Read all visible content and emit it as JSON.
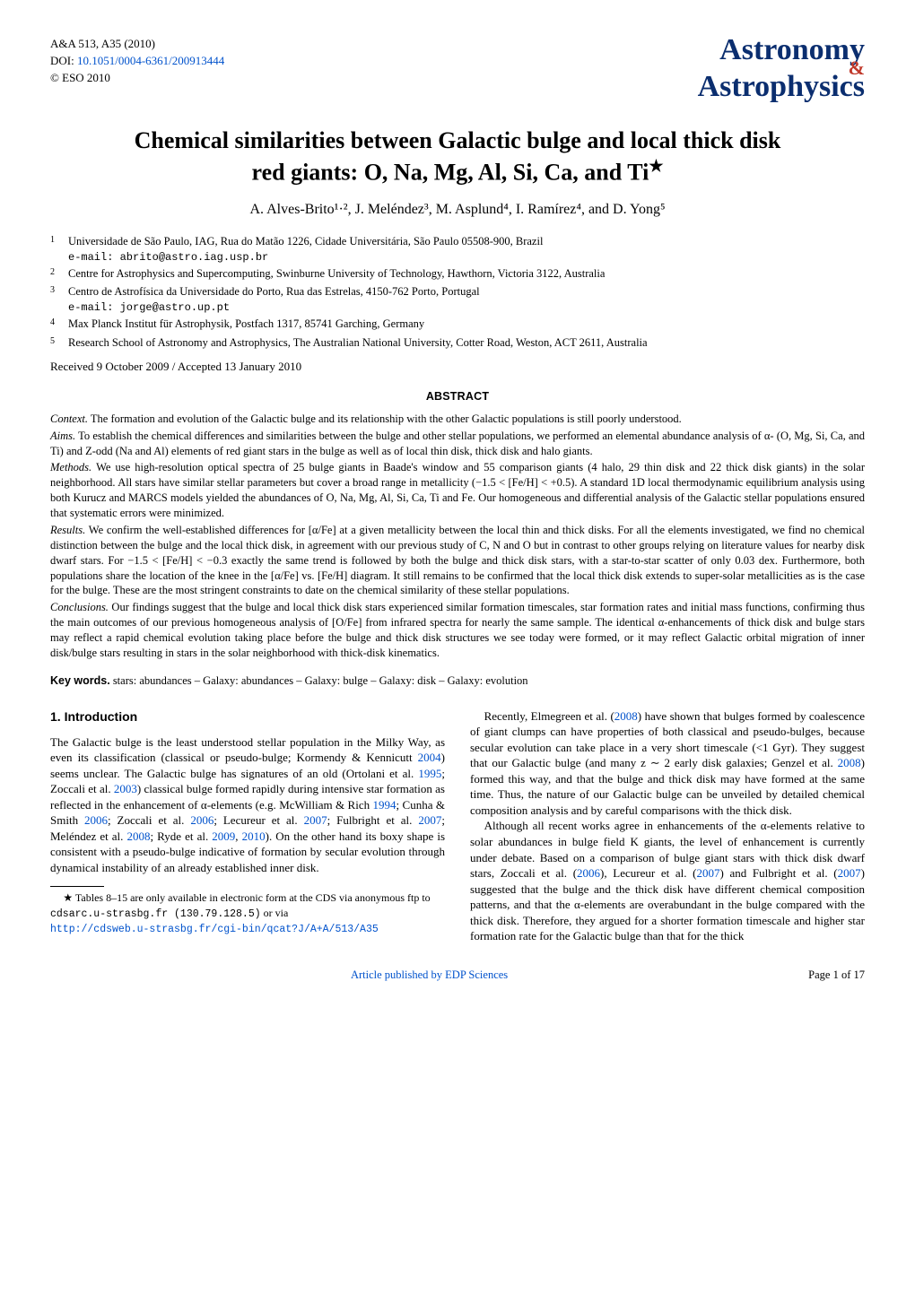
{
  "header": {
    "journal": "A&A 513, A35 (2010)",
    "doi_prefix": "DOI: ",
    "doi_link_text": "10.1051/0004-6361/200913444",
    "copyright": "© ESO 2010",
    "logo": {
      "line1": "Astronomy",
      "amp": "&",
      "line2": "Astrophysics"
    }
  },
  "title": {
    "line1": "Chemical similarities between Galactic bulge and local thick disk",
    "line2": "red giants: O, Na, Mg, Al, Si, Ca, and Ti",
    "star": "★"
  },
  "authors": "A. Alves-Brito¹·², J. Meléndez³, M. Asplund⁴, I. Ramírez⁴, and D. Yong⁵",
  "affiliations": [
    {
      "num": "1",
      "text": "Universidade de São Paulo, IAG, Rua do Matão 1226, Cidade Universitária, São Paulo 05508-900, Brazil",
      "email": "e-mail: abrito@astro.iag.usp.br"
    },
    {
      "num": "2",
      "text": "Centre for Astrophysics and Supercomputing, Swinburne University of Technology, Hawthorn, Victoria 3122, Australia",
      "email": ""
    },
    {
      "num": "3",
      "text": "Centro de Astrofísica da Universidade do Porto, Rua das Estrelas, 4150-762 Porto, Portugal",
      "email": "e-mail: jorge@astro.up.pt"
    },
    {
      "num": "4",
      "text": "Max Planck Institut für Astrophysik, Postfach 1317, 85741 Garching, Germany",
      "email": ""
    },
    {
      "num": "5",
      "text": "Research School of Astronomy and Astrophysics, The Australian National University, Cotter Road, Weston, ACT 2611, Australia",
      "email": ""
    }
  ],
  "dates": "Received 9 October 2009 / Accepted 13 January 2010",
  "abstract_heading": "ABSTRACT",
  "abstract": {
    "context_label": "Context.",
    "context": "The formation and evolution of the Galactic bulge and its relationship with the other Galactic populations is still poorly understood.",
    "aims_label": "Aims.",
    "aims": "To establish the chemical differences and similarities between the bulge and other stellar populations, we performed an elemental abundance analysis of α- (O, Mg, Si, Ca, and Ti) and Z-odd (Na and Al) elements of red giant stars in the bulge as well as of local thin disk, thick disk and halo giants.",
    "methods_label": "Methods.",
    "methods": "We use high-resolution optical spectra of 25 bulge giants in Baade's window and 55 comparison giants (4 halo, 29 thin disk and 22 thick disk giants) in the solar neighborhood. All stars have similar stellar parameters but cover a broad range in metallicity (−1.5 < [Fe/H] < +0.5). A standard 1D local thermodynamic equilibrium analysis using both Kurucz and MARCS models yielded the abundances of O, Na, Mg, Al, Si, Ca, Ti and Fe. Our homogeneous and differential analysis of the Galactic stellar populations ensured that systematic errors were minimized.",
    "results_label": "Results.",
    "results": "We confirm the well-established differences for [α/Fe] at a given metallicity between the local thin and thick disks. For all the elements investigated, we find no chemical distinction between the bulge and the local thick disk, in agreement with our previous study of C, N and O but in contrast to other groups relying on literature values for nearby disk dwarf stars. For −1.5 < [Fe/H] < −0.3 exactly the same trend is followed by both the bulge and thick disk stars, with a star-to-star scatter of only 0.03 dex. Furthermore, both populations share the location of the knee in the [α/Fe] vs. [Fe/H] diagram. It still remains to be confirmed that the local thick disk extends to super-solar metallicities as is the case for the bulge. These are the most stringent constraints to date on the chemical similarity of these stellar populations.",
    "conclusions_label": "Conclusions.",
    "conclusions": "Our findings suggest that the bulge and local thick disk stars experienced similar formation timescales, star formation rates and initial mass functions, confirming thus the main outcomes of our previous homogeneous analysis of [O/Fe] from infrared spectra for nearly the same sample. The identical α-enhancements of thick disk and bulge stars may reflect a rapid chemical evolution taking place before the bulge and thick disk structures we see today were formed, or it may reflect Galactic orbital migration of inner disk/bulge stars resulting in stars in the solar neighborhood with thick-disk kinematics."
  },
  "keywords": {
    "label": "Key words.",
    "text": "stars: abundances – Galaxy: abundances – Galaxy: bulge – Galaxy: disk – Galaxy: evolution"
  },
  "intro": {
    "heading": "1. Introduction",
    "col1_p1a": "The Galactic bulge is the least understood stellar population in the Milky Way, as even its classification (classical or pseudo-bulge; Kormendy & Kennicutt ",
    "cite_2004": "2004",
    "col1_p1b": ") seems unclear. The Galactic bulge has signatures of an old (Ortolani et al. ",
    "cite_1995": "1995",
    "col1_p1c": "; Zoccali et al. ",
    "cite_2003": "2003",
    "col1_p1d": ") classical bulge formed rapidly during intensive star formation as reflected in the enhancement of α-elements (e.g. McWilliam & Rich ",
    "cite_1994": "1994",
    "col1_p1e": "; Cunha & Smith ",
    "cite_2006a": "2006",
    "col1_p1f": "; Zoccali et al. ",
    "cite_2006b": "2006",
    "col1_p1g": "; Lecureur et al. ",
    "cite_2007a": "2007",
    "col1_p1h": "; Fulbright et al. ",
    "cite_2007b": "2007",
    "col1_p1i": "; Meléndez et al. ",
    "cite_2008a": "2008",
    "col1_p1j": "; Ryde et al. ",
    "cite_2009": "2009",
    "col1_p1k": ", ",
    "cite_2010": "2010",
    "col1_p1l": "). On the other hand its boxy shape is consistent with a pseudo-bulge indicative of formation by secular evolution through dynamical instability of an already established inner disk.",
    "col2_p1a": "Recently, Elmegreen et al. (",
    "c2_cite_2008": "2008",
    "col2_p1b": ") have shown that bulges formed by coalescence of giant clumps can have properties of both classical and pseudo-bulges, because secular evolution can take place in a very short timescale (<1 Gyr). They suggest that our Galactic bulge (and many z ∼ 2 early disk galaxies; Genzel et al. ",
    "c2_cite_2008b": "2008",
    "col2_p1c": ") formed this way, and that the bulge and thick disk may have formed at the same time. Thus, the nature of our Galactic bulge can be unveiled by detailed chemical composition analysis and by careful comparisons with the thick disk.",
    "col2_p2a": "Although all recent works agree in enhancements of the α-elements relative to solar abundances in bulge field K giants, the level of enhancement is currently under debate. Based on a comparison of bulge giant stars with thick disk dwarf stars, Zoccali et al. (",
    "c2_cite_2006": "2006",
    "col2_p2b": "), Lecureur et al. (",
    "c2_cite_2007a": "2007",
    "col2_p2c": ") and Fulbright et al. (",
    "c2_cite_2007b": "2007",
    "col2_p2d": ") suggested that the bulge and the thick disk have different chemical composition patterns, and that the α-elements are overabundant in the bulge compared with the thick disk. Therefore, they argued for a shorter formation timescale and higher star formation rate for the Galactic bulge than that for the thick"
  },
  "footnote": {
    "text1": "★ Tables 8–15 are only available in electronic form at the CDS via anonymous ftp to",
    "mono": "cdsarc.u-strasbg.fr (130.79.128.5)",
    "or_via": " or via",
    "link": "http://cdsweb.u-strasbg.fr/cgi-bin/qcat?J/A+A/513/A35"
  },
  "footer": {
    "center": "Article published by EDP Sciences",
    "right": "Page 1 of 17"
  },
  "colors": {
    "link": "#0052cc",
    "logo": "#0b2e6f",
    "accent": "#c0392b",
    "text": "#000000",
    "bg": "#ffffff"
  }
}
